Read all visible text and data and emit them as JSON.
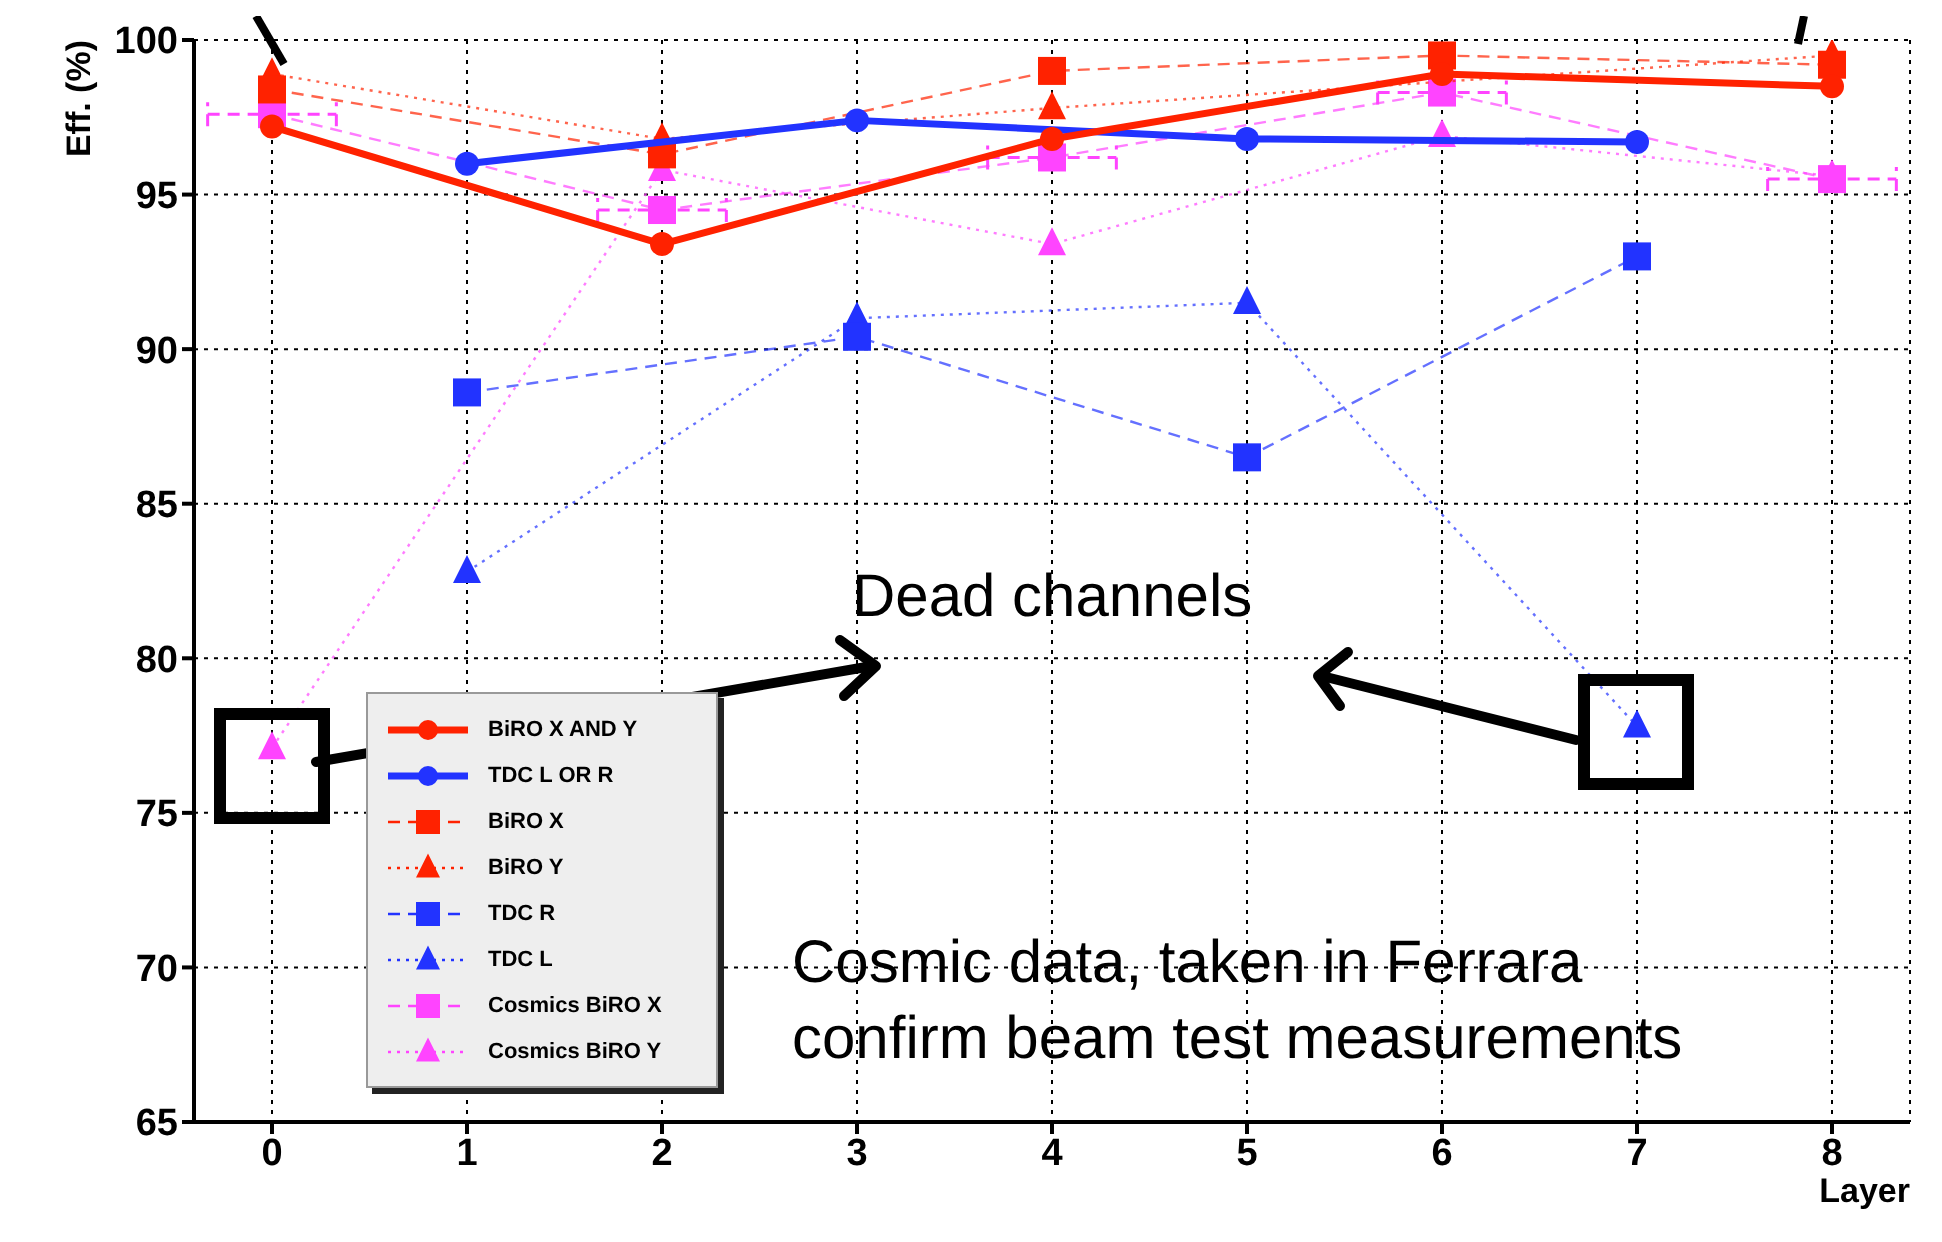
{
  "chart_data": {
    "type": "line",
    "xlabel": "Layer",
    "ylabel": "Eff. (%)",
    "xlim": [
      -0.4,
      8.4
    ],
    "ylim": [
      65,
      100
    ],
    "xticks": [
      0,
      1,
      2,
      3,
      4,
      5,
      6,
      7,
      8
    ],
    "yticks": [
      65,
      70,
      75,
      80,
      85,
      90,
      95,
      100
    ],
    "grid": true,
    "legend": "bottom left",
    "annotations": [
      "Dead channels",
      "Cosmic data, taken in Ferrara\nconfirm beam test measurements"
    ],
    "series": [
      {
        "name": "BiRO X AND Y",
        "color": "#ff2200",
        "line_style": "solid",
        "marker": "circle",
        "x": [
          0,
          2,
          4,
          6,
          8
        ],
        "values": [
          97.2,
          93.4,
          96.8,
          98.9,
          98.5
        ]
      },
      {
        "name": "TDC L OR R",
        "color": "#2233ff",
        "line_style": "solid",
        "marker": "circle",
        "x": [
          1,
          3,
          5,
          7
        ],
        "values": [
          96.0,
          97.4,
          96.8,
          96.7
        ]
      },
      {
        "name": "BiRO X",
        "color": "#ff2200",
        "line_style": "dashed",
        "marker": "square",
        "x": [
          0,
          2,
          4,
          6,
          8
        ],
        "values": [
          98.4,
          96.3,
          99.0,
          99.5,
          99.2
        ]
      },
      {
        "name": "BiRO Y",
        "color": "#ff2200",
        "line_style": "dotted",
        "marker": "triangle",
        "x": [
          0,
          2,
          4,
          6,
          8
        ],
        "values": [
          98.9,
          96.8,
          97.8,
          null,
          99.5
        ]
      },
      {
        "name": "TDC R",
        "color": "#2233ff",
        "line_style": "dashed",
        "marker": "square",
        "x": [
          1,
          3,
          5,
          7
        ],
        "values": [
          88.6,
          90.4,
          86.5,
          93.0
        ]
      },
      {
        "name": "TDC L",
        "color": "#2233ff",
        "line_style": "dotted",
        "marker": "triangle",
        "x": [
          1,
          3,
          5,
          7
        ],
        "values": [
          82.8,
          91.0,
          91.5,
          77.8
        ]
      },
      {
        "name": "Cosmics BiRO X",
        "color": "#ff44ff",
        "line_style": "dashed",
        "marker": "square",
        "x": [
          0,
          2,
          4,
          6,
          8
        ],
        "values": [
          97.6,
          94.5,
          96.2,
          98.3,
          95.5
        ],
        "xerrors": [
          0.33,
          0.33,
          0.33,
          0.33,
          0.33
        ]
      },
      {
        "name": "Cosmics BiRO Y",
        "color": "#ff44ff",
        "line_style": "dotted",
        "marker": "triangle",
        "x": [
          0,
          2,
          4,
          6,
          8
        ],
        "values": [
          77.1,
          95.8,
          93.4,
          96.9,
          95.6
        ]
      }
    ]
  }
}
